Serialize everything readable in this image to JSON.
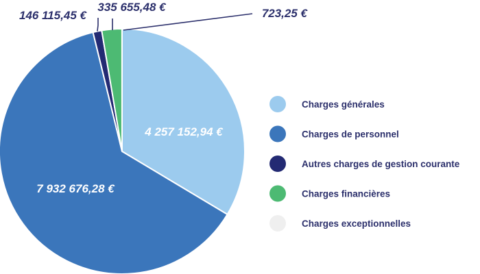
{
  "chart_data": {
    "type": "pie",
    "title": "",
    "categories": [
      "Charges générales",
      "Charges de personnel",
      "Autres charges de gestion courante",
      "Charges financières",
      "Charges exceptionnelles"
    ],
    "values": [
      4257152.94,
      7932676.28,
      146115.45,
      335655.48,
      723.25
    ],
    "value_labels": [
      "4 257 152,94 €",
      "7 932 676,28 €",
      "146 115,45 €",
      "335 655,48 €",
      "723,25 €"
    ],
    "colors": [
      "#9ccbee",
      "#3b76bb",
      "#232a73",
      "#4dba73",
      "#efefef"
    ],
    "label_colors": [
      "#ffffff",
      "#ffffff",
      "#2b2f6b",
      "#2b2f6b",
      "#2b2f6b"
    ],
    "legend_position": "right",
    "start_angle": "12 o'clock",
    "direction": "clockwise"
  }
}
